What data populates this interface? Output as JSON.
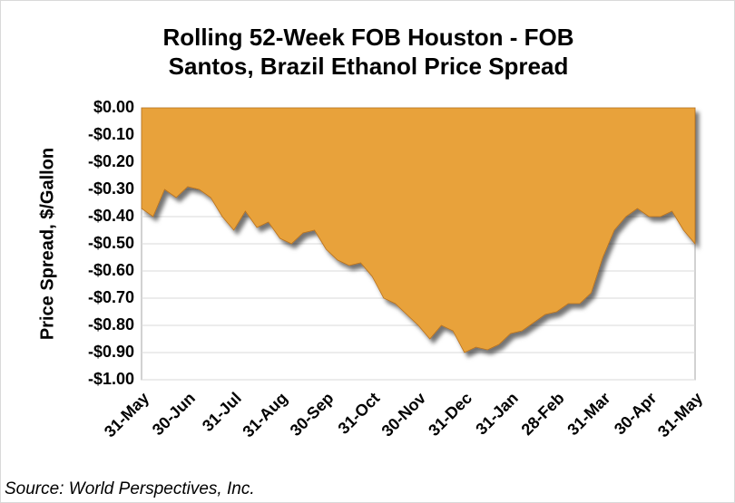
{
  "chart_data": {
    "type": "area",
    "title": "Rolling 52-Week FOB Houston - FOB Santos, Brazil Ethanol Price Spread",
    "y_label": "Price Spread, $/Gallon",
    "source": "Source: World Perspectives, Inc.",
    "color": "#e8a23a",
    "categories": [
      "31-May",
      null,
      null,
      null,
      "30-Jun",
      null,
      null,
      null,
      "31-Jul",
      null,
      null,
      null,
      "31-Aug",
      null,
      null,
      null,
      "30-Sep",
      null,
      null,
      null,
      "31-Oct",
      null,
      null,
      null,
      "30-Nov",
      null,
      null,
      null,
      "31-Dec",
      null,
      null,
      null,
      "31-Jan",
      null,
      null,
      null,
      "28-Feb",
      null,
      null,
      null,
      "31-Mar",
      null,
      null,
      null,
      "30-Apr",
      null,
      null,
      null,
      "31-May"
    ],
    "values": [
      -0.37,
      -0.4,
      -0.3,
      -0.33,
      -0.29,
      -0.3,
      -0.33,
      -0.4,
      -0.45,
      -0.38,
      -0.44,
      -0.42,
      -0.48,
      -0.5,
      -0.46,
      -0.45,
      -0.52,
      -0.56,
      -0.58,
      -0.57,
      -0.62,
      -0.7,
      -0.72,
      -0.76,
      -0.8,
      -0.85,
      -0.8,
      -0.82,
      -0.9,
      -0.88,
      -0.89,
      -0.87,
      -0.83,
      -0.82,
      -0.79,
      -0.76,
      -0.75,
      -0.72,
      -0.72,
      -0.68,
      -0.55,
      -0.45,
      -0.4,
      -0.37,
      -0.4,
      -0.4,
      -0.38,
      -0.45,
      -0.5
    ],
    "ylim": [
      -1,
      0
    ],
    "yticks": [
      {
        "value": 0,
        "label": "$0.00"
      },
      {
        "value": -0.1,
        "label": "-$0.10"
      },
      {
        "value": -0.2,
        "label": "-$0.20"
      },
      {
        "value": -0.3,
        "label": "-$0.30"
      },
      {
        "value": -0.4,
        "label": "-$0.40"
      },
      {
        "value": -0.5,
        "label": "-$0.50"
      },
      {
        "value": -0.6,
        "label": "-$0.60"
      },
      {
        "value": -0.7,
        "label": "-$0.70"
      },
      {
        "value": -0.8,
        "label": "-$0.80"
      },
      {
        "value": -0.9,
        "label": "-$0.90"
      },
      {
        "value": -1,
        "label": "-$1.00"
      }
    ],
    "grid": true
  }
}
